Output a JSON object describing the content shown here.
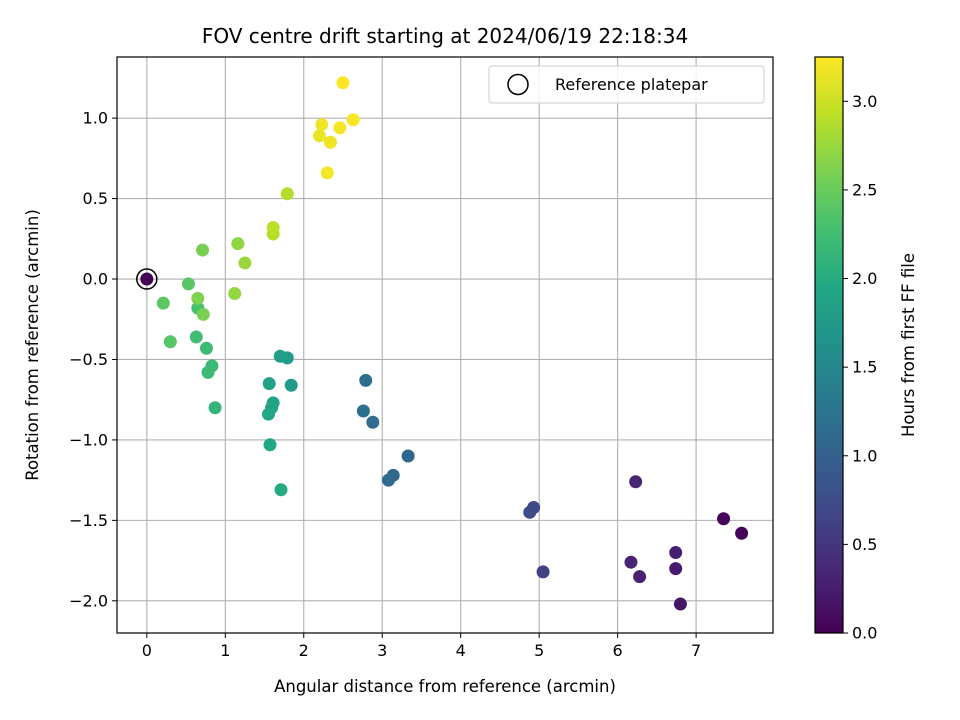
{
  "chart_data": {
    "type": "scatter",
    "title": "FOV centre drift starting at 2024/06/19 22:18:34",
    "xlabel": "Angular distance from reference (arcmin)",
    "ylabel": "Rotation from reference (arcmin)",
    "xlim": [
      -0.38,
      7.98
    ],
    "ylim": [
      -2.2,
      1.38
    ],
    "x_ticks": [
      0,
      1,
      2,
      3,
      4,
      5,
      6,
      7
    ],
    "x_tick_labels": [
      "0",
      "1",
      "2",
      "3",
      "4",
      "5",
      "6",
      "7"
    ],
    "y_ticks": [
      -2.0,
      -1.5,
      -1.0,
      -0.5,
      0.0,
      0.5,
      1.0
    ],
    "y_tick_labels": [
      "−2.0",
      "−1.5",
      "−1.0",
      "−0.5",
      "0.0",
      "0.5",
      "1.0"
    ],
    "grid": true,
    "legend": {
      "position": "top-right",
      "entries": [
        "Reference platepar"
      ]
    },
    "colorbar": {
      "label": "Hours from first FF file",
      "colormap": "viridis",
      "range": [
        0.0,
        3.25
      ],
      "ticks": [
        0.0,
        0.5,
        1.0,
        1.5,
        2.0,
        2.5,
        3.0
      ],
      "tick_labels": [
        "0.0",
        "0.5",
        "1.0",
        "1.5",
        "2.0",
        "2.5",
        "3.0"
      ]
    },
    "reference_point": {
      "x": 0,
      "y": 0
    },
    "points": [
      {
        "x": 0.0,
        "y": 0.0,
        "hours": 0.0
      },
      {
        "x": 7.58,
        "y": -1.58,
        "hours": 0.02
      },
      {
        "x": 7.35,
        "y": -1.49,
        "hours": 0.05
      },
      {
        "x": 6.8,
        "y": -2.02,
        "hours": 0.2
      },
      {
        "x": 6.74,
        "y": -1.8,
        "hours": 0.25
      },
      {
        "x": 6.74,
        "y": -1.7,
        "hours": 0.28
      },
      {
        "x": 6.28,
        "y": -1.85,
        "hours": 0.3
      },
      {
        "x": 6.17,
        "y": -1.76,
        "hours": 0.33
      },
      {
        "x": 6.23,
        "y": -1.26,
        "hours": 0.35
      },
      {
        "x": 5.05,
        "y": -1.82,
        "hours": 0.6
      },
      {
        "x": 4.93,
        "y": -1.42,
        "hours": 0.7
      },
      {
        "x": 4.88,
        "y": -1.45,
        "hours": 0.73
      },
      {
        "x": 3.33,
        "y": -1.1,
        "hours": 1.05
      },
      {
        "x": 3.14,
        "y": -1.22,
        "hours": 1.1
      },
      {
        "x": 3.08,
        "y": -1.25,
        "hours": 1.12
      },
      {
        "x": 2.88,
        "y": -0.89,
        "hours": 1.15
      },
      {
        "x": 2.79,
        "y": -0.63,
        "hours": 1.18
      },
      {
        "x": 2.76,
        "y": -0.82,
        "hours": 1.2
      },
      {
        "x": 1.84,
        "y": -0.66,
        "hours": 1.75
      },
      {
        "x": 1.79,
        "y": -0.49,
        "hours": 1.78
      },
      {
        "x": 1.7,
        "y": -0.48,
        "hours": 1.8
      },
      {
        "x": 1.56,
        "y": -0.65,
        "hours": 1.85
      },
      {
        "x": 1.61,
        "y": -0.77,
        "hours": 1.87
      },
      {
        "x": 1.59,
        "y": -0.8,
        "hours": 1.9
      },
      {
        "x": 1.55,
        "y": -0.84,
        "hours": 1.92
      },
      {
        "x": 1.57,
        "y": -1.03,
        "hours": 1.95
      },
      {
        "x": 1.71,
        "y": -1.31,
        "hours": 1.98
      },
      {
        "x": 0.87,
        "y": -0.8,
        "hours": 2.12
      },
      {
        "x": 0.83,
        "y": -0.54,
        "hours": 2.18
      },
      {
        "x": 0.78,
        "y": -0.58,
        "hours": 2.2
      },
      {
        "x": 0.76,
        "y": -0.43,
        "hours": 2.22
      },
      {
        "x": 0.63,
        "y": -0.36,
        "hours": 2.25
      },
      {
        "x": 0.65,
        "y": -0.18,
        "hours": 2.3
      },
      {
        "x": 0.3,
        "y": -0.39,
        "hours": 2.38
      },
      {
        "x": 0.53,
        "y": -0.03,
        "hours": 2.4
      },
      {
        "x": 0.21,
        "y": -0.15,
        "hours": 2.42
      },
      {
        "x": 0.72,
        "y": -0.22,
        "hours": 2.6
      },
      {
        "x": 0.65,
        "y": -0.12,
        "hours": 2.62
      },
      {
        "x": 0.71,
        "y": 0.18,
        "hours": 2.58
      },
      {
        "x": 1.16,
        "y": 0.22,
        "hours": 2.7
      },
      {
        "x": 1.12,
        "y": -0.09,
        "hours": 2.72
      },
      {
        "x": 1.25,
        "y": 0.1,
        "hours": 2.75
      },
      {
        "x": 1.61,
        "y": 0.28,
        "hours": 2.9
      },
      {
        "x": 1.61,
        "y": 0.32,
        "hours": 2.92
      },
      {
        "x": 1.79,
        "y": 0.53,
        "hours": 2.88
      },
      {
        "x": 2.2,
        "y": 0.89,
        "hours": 3.15
      },
      {
        "x": 2.23,
        "y": 0.96,
        "hours": 3.17
      },
      {
        "x": 2.34,
        "y": 0.85,
        "hours": 3.18
      },
      {
        "x": 2.3,
        "y": 0.66,
        "hours": 3.2
      },
      {
        "x": 2.46,
        "y": 0.94,
        "hours": 3.21
      },
      {
        "x": 2.63,
        "y": 0.99,
        "hours": 3.23
      },
      {
        "x": 2.5,
        "y": 1.22,
        "hours": 3.25
      }
    ]
  }
}
